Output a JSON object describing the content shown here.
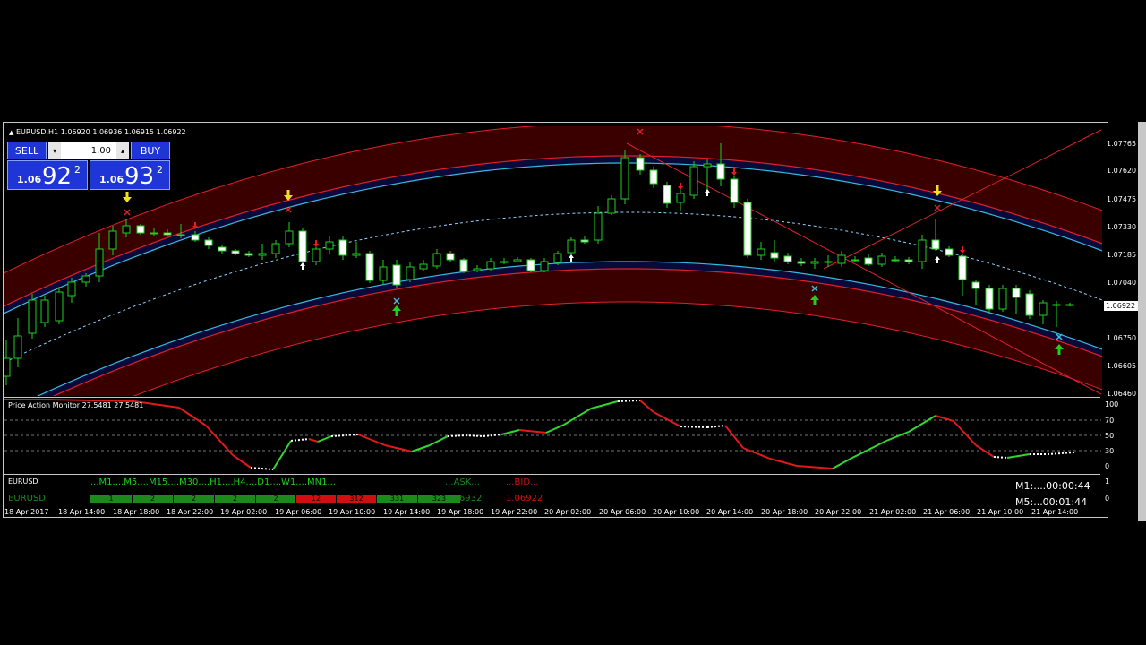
{
  "window": {
    "symbol_title": "EURUSD,H1  1.06920 1.06936 1.06915 1.06922"
  },
  "oneclick": {
    "sell_label": "SELL",
    "buy_label": "BUY",
    "lot_value": "1.00",
    "lot_down_icon": "▾",
    "lot_up_icon": "▴",
    "sell_small": "1.06",
    "sell_big": "92",
    "sell_sup": "2",
    "buy_small": "1.06",
    "buy_big": "93",
    "buy_sup": "2"
  },
  "price_scale": {
    "labels": [
      "1.07765",
      "1.07620",
      "1.07475",
      "1.07330",
      "1.07185",
      "1.07040",
      "1.06922",
      "1.06750",
      "1.06605",
      "1.06460"
    ],
    "current": "1.06922"
  },
  "indicator": {
    "title": "Price Action Monitor 27.5481 27.5481",
    "levels": [
      "100",
      "70",
      "50",
      "30",
      "0"
    ]
  },
  "mtf_panel": {
    "symbol_header": "EURUSD",
    "timeframes_header": "...M1....M5....M15....M30....H1....H4....D1....W1....MN1...",
    "ask_header": "...ASK...",
    "bid_header": "...BID...",
    "symbol_row": "EURUSD",
    "cells": [
      {
        "text": "1",
        "color": "#1a8a1a"
      },
      {
        "text": "2",
        "color": "#1a8a1a"
      },
      {
        "text": "2",
        "color": "#1a8a1a"
      },
      {
        "text": "2",
        "color": "#1a8a1a"
      },
      {
        "text": "2",
        "color": "#1a8a1a"
      },
      {
        "text": "12",
        "color": "#d01010"
      },
      {
        "text": "312",
        "color": "#d01010"
      },
      {
        "text": "331",
        "color": "#1a8a1a"
      },
      {
        "text": "323",
        "color": "#1a8a1a"
      }
    ],
    "ask_value": "1.06932",
    "bid_value": "1.06922",
    "timer_m1": "M1:....00:00:44",
    "timer_m5": "M5:...00:01:44",
    "scale": [
      "1",
      "0"
    ]
  },
  "time_axis": [
    "18 Apr 2017",
    "18 Apr 14:00",
    "18 Apr 18:00",
    "18 Apr 22:00",
    "19 Apr 02:00",
    "19 Apr 06:00",
    "19 Apr 10:00",
    "19 Apr 14:00",
    "19 Apr 18:00",
    "19 Apr 22:00",
    "20 Apr 02:00",
    "20 Apr 06:00",
    "20 Apr 10:00",
    "20 Apr 14:00",
    "20 Apr 18:00",
    "20 Apr 22:00",
    "21 Apr 02:00",
    "21 Apr 06:00",
    "21 Apr 10:00",
    "21 Apr 14:00"
  ],
  "colors": {
    "up_candle": "#000000",
    "down_candle": "#ffffff",
    "wick": "#1fd01f",
    "band_outer": "#3a0000",
    "band_inner": "#0a0a3a",
    "band_line_red": "#e0202a",
    "band_line_cyan": "#38b8e0",
    "midline": "#8fd3ff",
    "osc_up": "#2ed82e",
    "osc_down": "#e01a1a",
    "arrow_buy": "#1fd01f",
    "arrow_sell": "#f0e020"
  }
}
